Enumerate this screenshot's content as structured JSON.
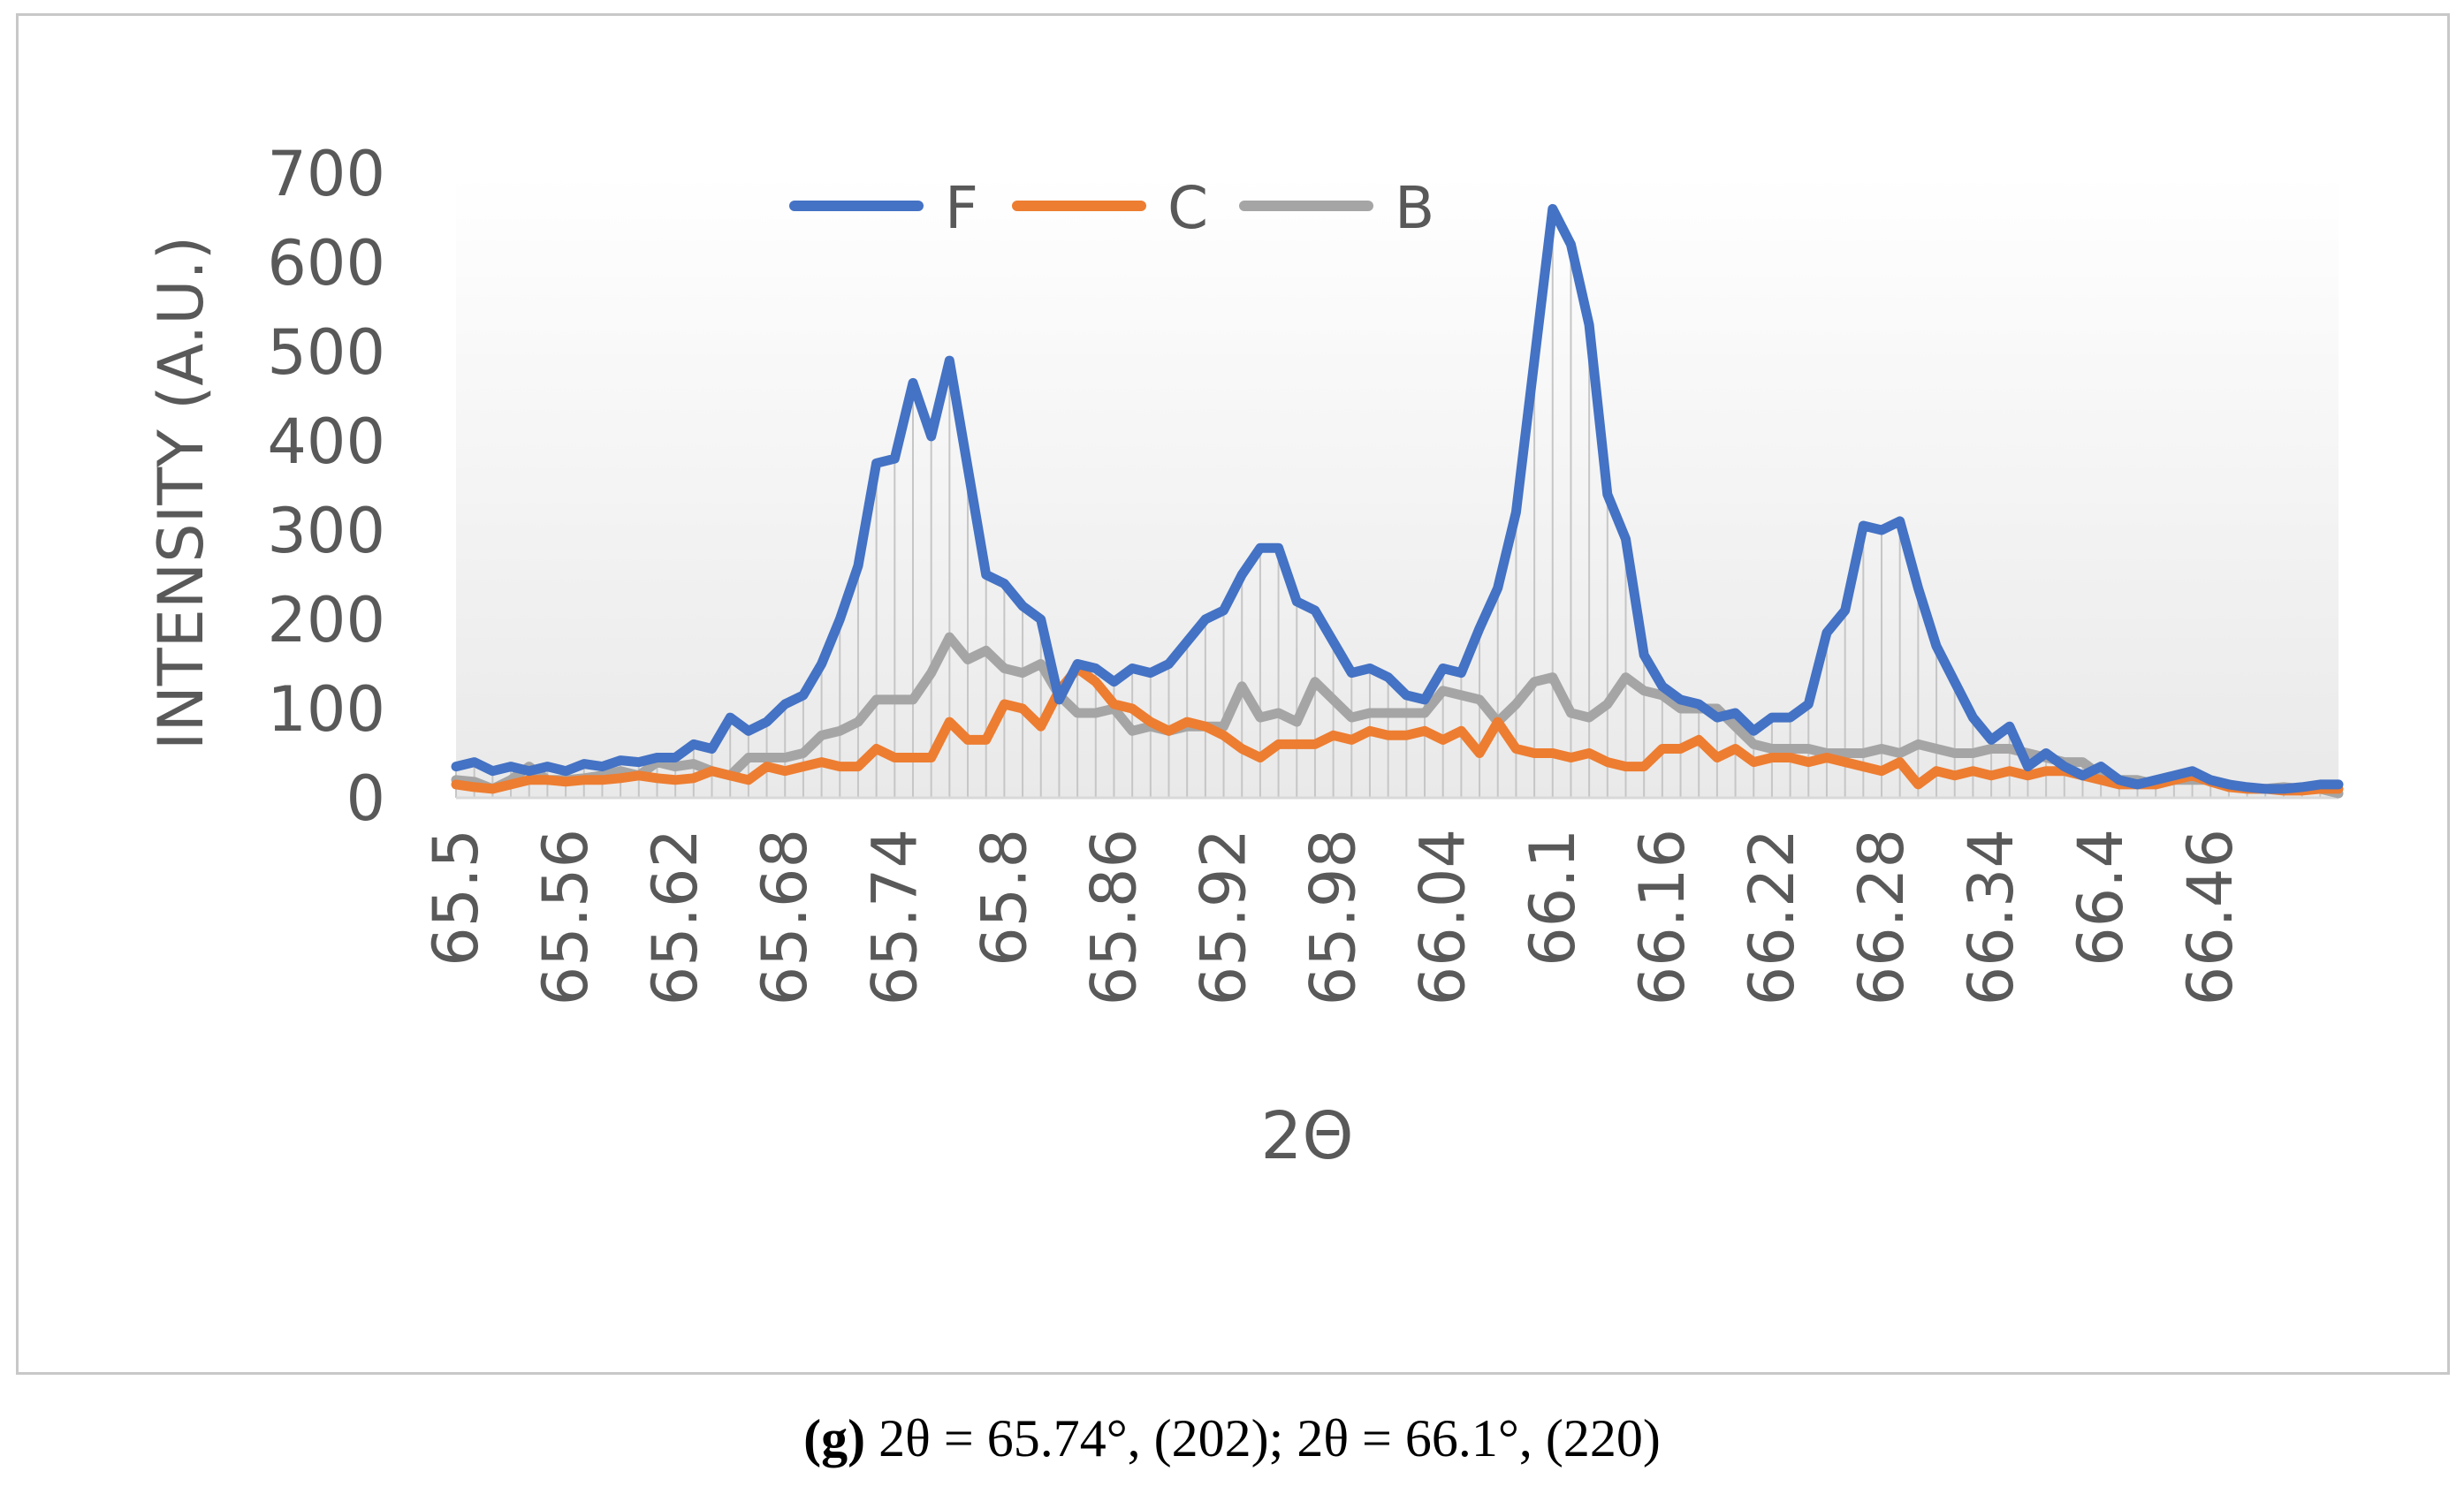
{
  "caption": {
    "label": "(g)",
    "text": "2θ = 65.74°, (202); 2θ = 66.1°, (220)"
  },
  "chart_data": {
    "type": "line",
    "title": "",
    "xlabel": "2Θ",
    "ylabel": "INTENSITY (A.U.)",
    "ylim": [
      0,
      700
    ],
    "yticks": [
      "0",
      "100",
      "200",
      "300",
      "400",
      "500",
      "600",
      "700"
    ],
    "xtick_labels": [
      "65.5",
      "65.56",
      "65.62",
      "65.68",
      "65.74",
      "65.8",
      "65.86",
      "65.92",
      "65.98",
      "66.04",
      "66.1",
      "66.16",
      "66.22",
      "66.28",
      "66.34",
      "66.4",
      "66.46"
    ],
    "x_start": 65.5,
    "x_step": 0.01,
    "legend": {
      "position": "top",
      "entries": [
        "F",
        "C",
        "B"
      ]
    },
    "colors": {
      "F": "#4472c4",
      "C": "#ed7d31",
      "B": "#a5a5a5",
      "axis": "#d9d9d9",
      "text": "#595959"
    },
    "series": [
      {
        "name": "F",
        "values": [
          35,
          40,
          30,
          35,
          30,
          35,
          30,
          38,
          35,
          42,
          40,
          45,
          45,
          60,
          55,
          90,
          75,
          85,
          105,
          115,
          150,
          200,
          260,
          375,
          380,
          465,
          405,
          490,
          370,
          250,
          240,
          215,
          200,
          110,
          150,
          145,
          130,
          145,
          140,
          150,
          175,
          200,
          210,
          250,
          280,
          280,
          220,
          210,
          175,
          140,
          145,
          135,
          115,
          110,
          145,
          140,
          190,
          235,
          320,
          490,
          660,
          620,
          530,
          340,
          290,
          160,
          125,
          110,
          105,
          90,
          95,
          75,
          90,
          90,
          105,
          185,
          210,
          305,
          300,
          310,
          235,
          170,
          130,
          90,
          65,
          80,
          35,
          50,
          35,
          25,
          35,
          20,
          15,
          20,
          25,
          30,
          20,
          15,
          12,
          10,
          10,
          12,
          15,
          15
        ]
      },
      {
        "name": "C",
        "values": [
          15,
          12,
          10,
          15,
          20,
          20,
          18,
          20,
          20,
          22,
          25,
          22,
          20,
          22,
          30,
          25,
          20,
          35,
          30,
          35,
          40,
          35,
          35,
          55,
          45,
          45,
          45,
          85,
          65,
          65,
          105,
          100,
          80,
          120,
          145,
          130,
          105,
          100,
          85,
          75,
          85,
          80,
          70,
          55,
          45,
          60,
          60,
          60,
          70,
          65,
          75,
          70,
          70,
          75,
          65,
          75,
          50,
          85,
          55,
          50,
          50,
          45,
          50,
          40,
          35,
          35,
          55,
          55,
          65,
          45,
          55,
          40,
          45,
          45,
          40,
          45,
          40,
          35,
          30,
          40,
          15,
          30,
          25,
          30,
          25,
          30,
          25,
          30,
          30,
          25,
          20,
          15,
          15,
          15,
          20,
          25,
          18,
          12,
          10,
          10,
          8,
          8,
          10,
          10
        ]
      },
      {
        "name": "B",
        "values": [
          20,
          18,
          10,
          20,
          35,
          20,
          20,
          22,
          25,
          30,
          25,
          40,
          35,
          38,
          30,
          25,
          45,
          45,
          45,
          50,
          70,
          75,
          85,
          110,
          110,
          110,
          140,
          180,
          155,
          165,
          145,
          140,
          150,
          115,
          95,
          95,
          100,
          75,
          80,
          75,
          80,
          80,
          80,
          125,
          90,
          95,
          85,
          130,
          110,
          90,
          95,
          95,
          95,
          95,
          120,
          115,
          110,
          85,
          105,
          130,
          135,
          95,
          90,
          105,
          135,
          120,
          115,
          100,
          100,
          100,
          80,
          60,
          55,
          55,
          55,
          50,
          50,
          50,
          55,
          50,
          60,
          55,
          50,
          50,
          55,
          55,
          50,
          45,
          40,
          40,
          25,
          20,
          20,
          15,
          20,
          20,
          20,
          15,
          10,
          10,
          12,
          10,
          10,
          5
        ]
      }
    ]
  }
}
